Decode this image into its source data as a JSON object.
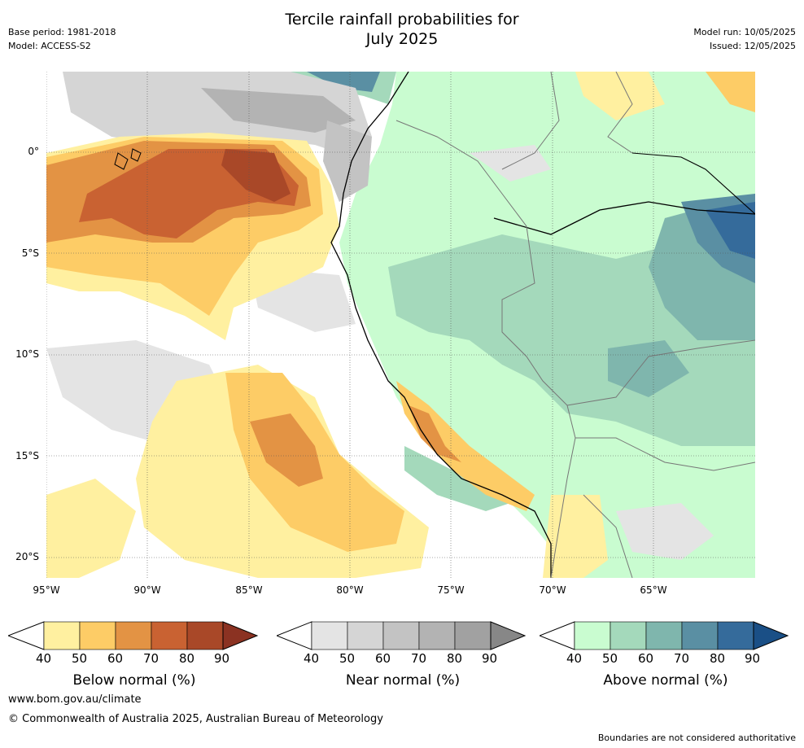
{
  "header": {
    "title_line1": "Tercile rainfall probabilities for",
    "title_line2": "July 2025",
    "base_period": "Base period: 1981-2018",
    "model": "Model: ACCESS-S2",
    "model_run": "Model run: 10/05/2025",
    "issued": "Issued: 12/05/2025"
  },
  "map": {
    "lat_labels": [
      "0°",
      "5°S",
      "10°S",
      "15°S",
      "20°S"
    ],
    "lon_labels": [
      "95°W",
      "90°W",
      "85°W",
      "80°W",
      "75°W",
      "70°W",
      "65°W"
    ],
    "extent": {
      "lon_min": -95,
      "lon_max": -60,
      "lat_min": -21,
      "lat_max": 4
    }
  },
  "legends": [
    {
      "title": "Below normal (%)",
      "ticks": [
        "40",
        "50",
        "60",
        "70",
        "80",
        "90"
      ],
      "colors": [
        "#fff0a0",
        "#fdcc66",
        "#e39344",
        "#c96232",
        "#a94828",
        "#8b3222"
      ]
    },
    {
      "title": "Near normal (%)",
      "ticks": [
        "40",
        "50",
        "60",
        "70",
        "80",
        "90"
      ],
      "colors": [
        "#e4e4e4",
        "#d5d5d5",
        "#c3c3c3",
        "#b3b3b3",
        "#a1a1a1",
        "#878787"
      ]
    },
    {
      "title": "Above normal (%)",
      "ticks": [
        "40",
        "50",
        "60",
        "70",
        "80",
        "90"
      ],
      "colors": [
        "#c9fcd0",
        "#a4d9bb",
        "#7fb6ad",
        "#5a8fa3",
        "#356b9b",
        "#1a4f86"
      ]
    }
  ],
  "footer": {
    "website": "www.bom.gov.au/climate",
    "copyright": "© Commonwealth of Australia 2025, Australian Bureau of Meteorology",
    "disclaimer": "Boundaries are not considered authoritative"
  }
}
